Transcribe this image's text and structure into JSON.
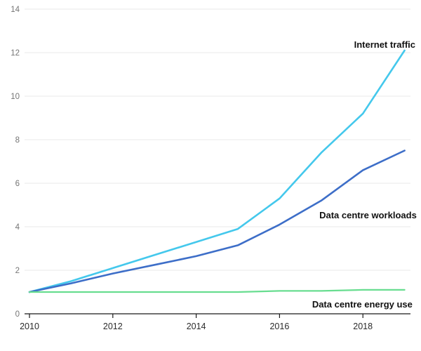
{
  "chart_data": {
    "type": "line",
    "title": "",
    "xlabel": "",
    "ylabel": "",
    "x": [
      2010,
      2011,
      2012,
      2013,
      2014,
      2015,
      2016,
      2017,
      2018,
      2019
    ],
    "xticks": [
      2010,
      2012,
      2014,
      2016,
      2018
    ],
    "yticks": [
      0,
      2,
      4,
      6,
      8,
      10,
      12,
      14
    ],
    "xlim": [
      2009.9,
      2019.15
    ],
    "ylim": [
      0,
      14
    ],
    "grid": "horizontal-light",
    "legend": "inline-annotations",
    "series": [
      {
        "name": "Internet traffic",
        "color": "#44c8ec",
        "values": [
          1.0,
          1.5,
          2.1,
          2.7,
          3.3,
          3.9,
          5.3,
          7.4,
          9.2,
          12.1
        ],
        "label_pos": {
          "year": 2019.26,
          "value": 12.23,
          "align": "end"
        }
      },
      {
        "name": "Data centre workloads",
        "color": "#3d6ec8",
        "values": [
          1.0,
          1.4,
          1.85,
          2.25,
          2.65,
          3.15,
          4.1,
          5.2,
          6.6,
          7.5
        ],
        "label_pos": {
          "year": 2019.29,
          "value": 4.39,
          "align": "end"
        }
      },
      {
        "name": "Data centre energy use",
        "color": "#68dd90",
        "values": [
          1.0,
          1.0,
          1.0,
          1.0,
          1.0,
          1.0,
          1.05,
          1.05,
          1.1,
          1.1
        ],
        "label_pos": {
          "year": 2019.19,
          "value": 0.29,
          "align": "end"
        }
      }
    ]
  },
  "colors": {
    "background": "#ffffff",
    "grid": "#e8e8e8",
    "axis": "#1a1a1a",
    "ytick_label": "#757575",
    "xtick_label": "#2b2b2b",
    "annotation": "#111111"
  }
}
